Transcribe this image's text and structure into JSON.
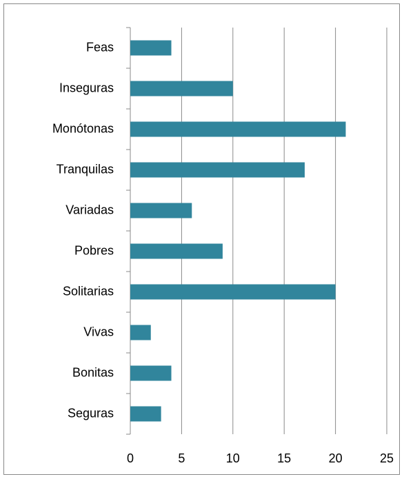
{
  "chart_data": {
    "type": "bar",
    "orientation": "horizontal",
    "categories": [
      "Feas",
      "Inseguras",
      "Monótonas",
      "Tranquilas",
      "Variadas",
      "Pobres",
      "Solitarias",
      "Vivas",
      "Bonitas",
      "Seguras"
    ],
    "values": [
      4,
      10,
      21,
      17,
      6,
      9,
      20,
      2,
      4,
      3
    ],
    "color": "#31859c",
    "xlim": [
      0,
      25
    ],
    "xticks": [
      0,
      5,
      10,
      15,
      20,
      25
    ],
    "grid": true
  }
}
